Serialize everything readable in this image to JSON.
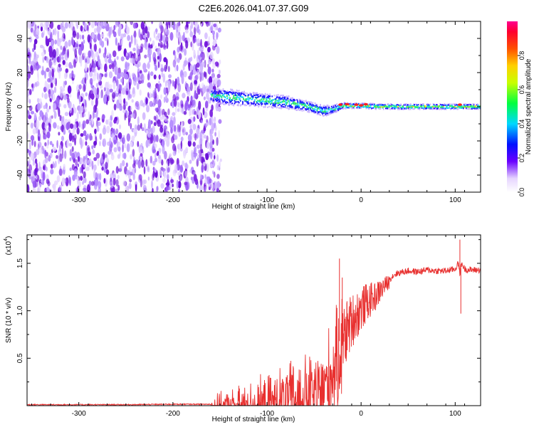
{
  "figure_title": "C2E6.2026.041.07.37.G09",
  "colors": {
    "snr_line": "#e8302f",
    "noise": "#7a1fe0",
    "frame": "#000000"
  },
  "chart_data": [
    {
      "type": "heatmap",
      "title": "C2E6.2026.041.07.37.G09",
      "xlabel": "Height of straight line (km)",
      "ylabel": "Frequency (Hz)",
      "xlim": [
        -355,
        127
      ],
      "ylim": [
        -50,
        50
      ],
      "x_ticks": [
        -300,
        -200,
        -100,
        0,
        100
      ],
      "x_tick_labels": [
        "-300",
        "-200",
        "-100",
        "0",
        "100"
      ],
      "y_ticks": [
        -40,
        -20,
        0,
        20,
        40
      ],
      "y_tick_labels": [
        "-40",
        "-20",
        "0",
        "20",
        "40"
      ],
      "noise_region_x": [
        -355,
        -150
      ],
      "signal_track": {
        "x": [
          -160,
          -140,
          -120,
          -100,
          -80,
          -60,
          -40,
          -30,
          -20,
          -10,
          0,
          20,
          40,
          60,
          80,
          100,
          127
        ],
        "y": [
          7,
          6,
          5,
          4,
          3,
          1,
          -2,
          -1,
          1,
          1,
          1,
          0.5,
          0.5,
          0.5,
          0.5,
          0.5,
          0.5
        ],
        "spread": [
          5,
          6,
          5,
          5,
          5,
          4,
          4,
          3,
          2.5,
          2,
          2,
          2,
          2,
          2,
          2,
          2,
          2
        ]
      },
      "colorbar": {
        "label": "Normalized spectral amplitude",
        "range": [
          0,
          1
        ],
        "ticks": [
          0.0,
          0.2,
          0.4,
          0.6,
          0.8
        ],
        "tick_labels": [
          "0.0",
          "0.2",
          "0.4",
          "0.6",
          "0.8"
        ]
      }
    },
    {
      "type": "line",
      "xlabel": "Height of straight line (km)",
      "ylabel": "SNR (10 * v/v)",
      "y_multiplier": "(x10",
      "y_multiplier_exp": "4",
      "y_multiplier_close": ")",
      "xlim": [
        -355,
        127
      ],
      "ylim": [
        0,
        1.8
      ],
      "x_ticks": [
        -300,
        -200,
        -100,
        0,
        100
      ],
      "x_tick_labels": [
        "-300",
        "-200",
        "-100",
        "0",
        "100"
      ],
      "y_ticks": [
        0.5,
        1.0,
        1.5
      ],
      "y_tick_labels": [
        "0.5",
        "1.0",
        "1.5"
      ],
      "series": [
        {
          "name": "SNR",
          "x": [
            -355,
            -300,
            -250,
            -200,
            -160,
            -140,
            -120,
            -100,
            -90,
            -80,
            -70,
            -60,
            -50,
            -45,
            -40,
            -35,
            -30,
            -25,
            -20,
            -15,
            -10,
            -5,
            0,
            5,
            10,
            15,
            20,
            25,
            30,
            35,
            40,
            50,
            60,
            70,
            80,
            90,
            100,
            103,
            105,
            107,
            110,
            115,
            127
          ],
          "y": [
            0.01,
            0.01,
            0.01,
            0.015,
            0.015,
            0.03,
            0.06,
            0.08,
            0.12,
            0.15,
            0.18,
            0.2,
            0.22,
            0.25,
            0.3,
            0.4,
            0.5,
            0.6,
            0.8,
            0.9,
            1.0,
            1.05,
            1.1,
            1.15,
            1.18,
            1.2,
            1.25,
            1.3,
            1.33,
            1.38,
            1.4,
            1.42,
            1.41,
            1.43,
            1.42,
            1.42,
            1.44,
            1.5,
            1.4,
            1.5,
            1.44,
            1.43,
            1.43
          ]
        }
      ],
      "spikes": [
        {
          "x": -23,
          "y": 1.55
        },
        {
          "x": -20,
          "y": 1.35
        },
        {
          "x": -15,
          "y": 1.1
        },
        {
          "x": 105,
          "y": 1.75
        },
        {
          "x": 106,
          "y": 0.97
        }
      ]
    }
  ]
}
